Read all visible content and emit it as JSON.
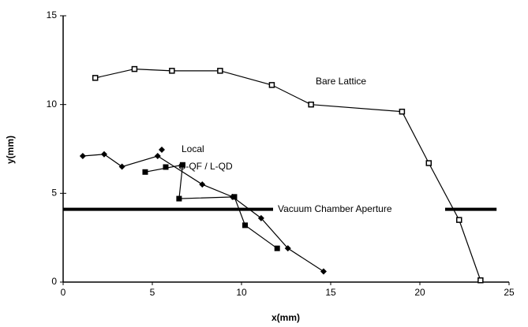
{
  "chart_data": {
    "type": "scatter",
    "xlabel": "x(mm)",
    "ylabel": "y(mm)",
    "xlim": [
      0,
      25
    ],
    "ylim": [
      0,
      15
    ],
    "xticks": [
      0,
      5,
      10,
      15,
      20,
      25
    ],
    "yticks": [
      0,
      5,
      10,
      15
    ],
    "series": [
      {
        "name": "Bare Lattice",
        "color": "#000000",
        "marker": "square-open",
        "x": [
          1.8,
          4.0,
          6.1,
          8.8,
          11.7,
          13.9,
          19.0,
          20.5,
          22.2,
          23.4
        ],
        "values": [
          11.5,
          12.0,
          11.9,
          11.9,
          11.1,
          10.0,
          9.6,
          6.7,
          3.5,
          0.1
        ]
      },
      {
        "name": "Local",
        "color": "#000000",
        "marker": "diamond",
        "x": [
          1.1,
          2.3,
          3.3,
          5.3,
          7.8,
          9.5,
          11.1,
          12.6,
          14.6
        ],
        "values": [
          7.1,
          7.2,
          6.5,
          7.1,
          5.5,
          4.8,
          3.6,
          1.9,
          0.6
        ]
      },
      {
        "name": "G-QF / L-QD",
        "color": "#000000",
        "marker": "square-filled",
        "x": [
          4.6,
          6.7,
          6.5,
          9.6,
          10.2,
          12.0
        ],
        "values": [
          6.2,
          6.6,
          4.7,
          4.8,
          3.2,
          1.9
        ]
      },
      {
        "name": "Vacuum Chamber Aperture",
        "color": "#000000",
        "marker": "none",
        "x": [
          0,
          24.3
        ],
        "values": [
          4.1,
          4.1
        ]
      }
    ]
  }
}
